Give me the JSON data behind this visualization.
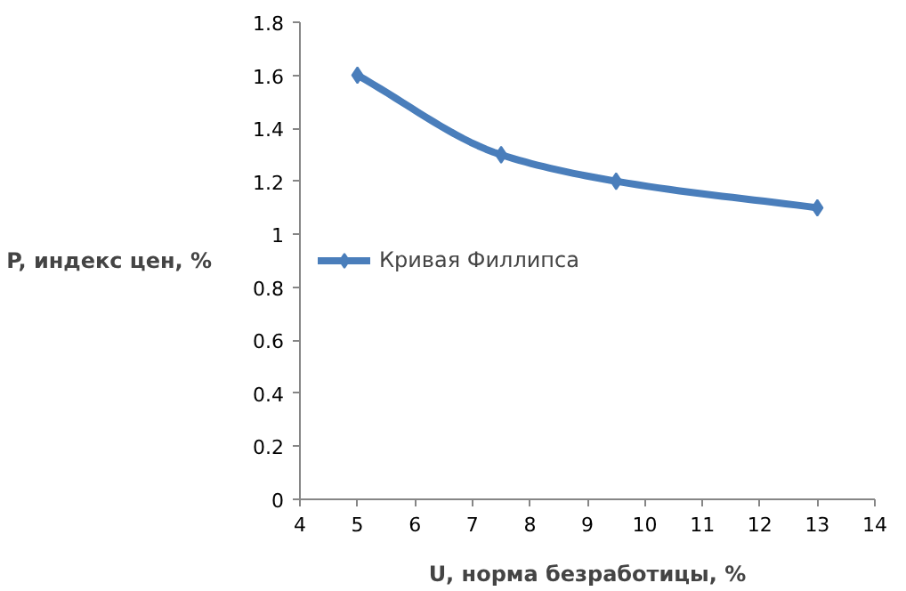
{
  "chart_data": {
    "type": "line",
    "xlabel": "U, норма безработицы, %",
    "ylabel": "P, индекс цен, %",
    "x": [
      5,
      7.5,
      9.5,
      13
    ],
    "series": [
      {
        "name": "Кривая Филлипса",
        "color": "#4a7ebb",
        "values": [
          1.6,
          1.3,
          1.2,
          1.1
        ]
      }
    ],
    "xlim": [
      4,
      14
    ],
    "xticks": [
      4,
      5,
      6,
      7,
      8,
      9,
      10,
      11,
      12,
      13,
      14
    ],
    "ylim": [
      0,
      1.8
    ],
    "yticks": [
      0,
      {
        "value": 0.2,
        "label": "0.2"
      },
      {
        "value": 0.4,
        "label": "0.4"
      },
      {
        "value": 0.6,
        "label": "0.6"
      },
      {
        "value": 0.8,
        "label": "0.8"
      },
      1,
      {
        "value": 1.2,
        "label": "1.2"
      },
      {
        "value": 1.4,
        "label": "1.4"
      },
      {
        "value": 1.6,
        "label": "1.6"
      },
      {
        "value": 1.8,
        "label": "1.8"
      }
    ],
    "grid": false,
    "legend": "left",
    "marker": "diamond",
    "line_style": "solid"
  }
}
